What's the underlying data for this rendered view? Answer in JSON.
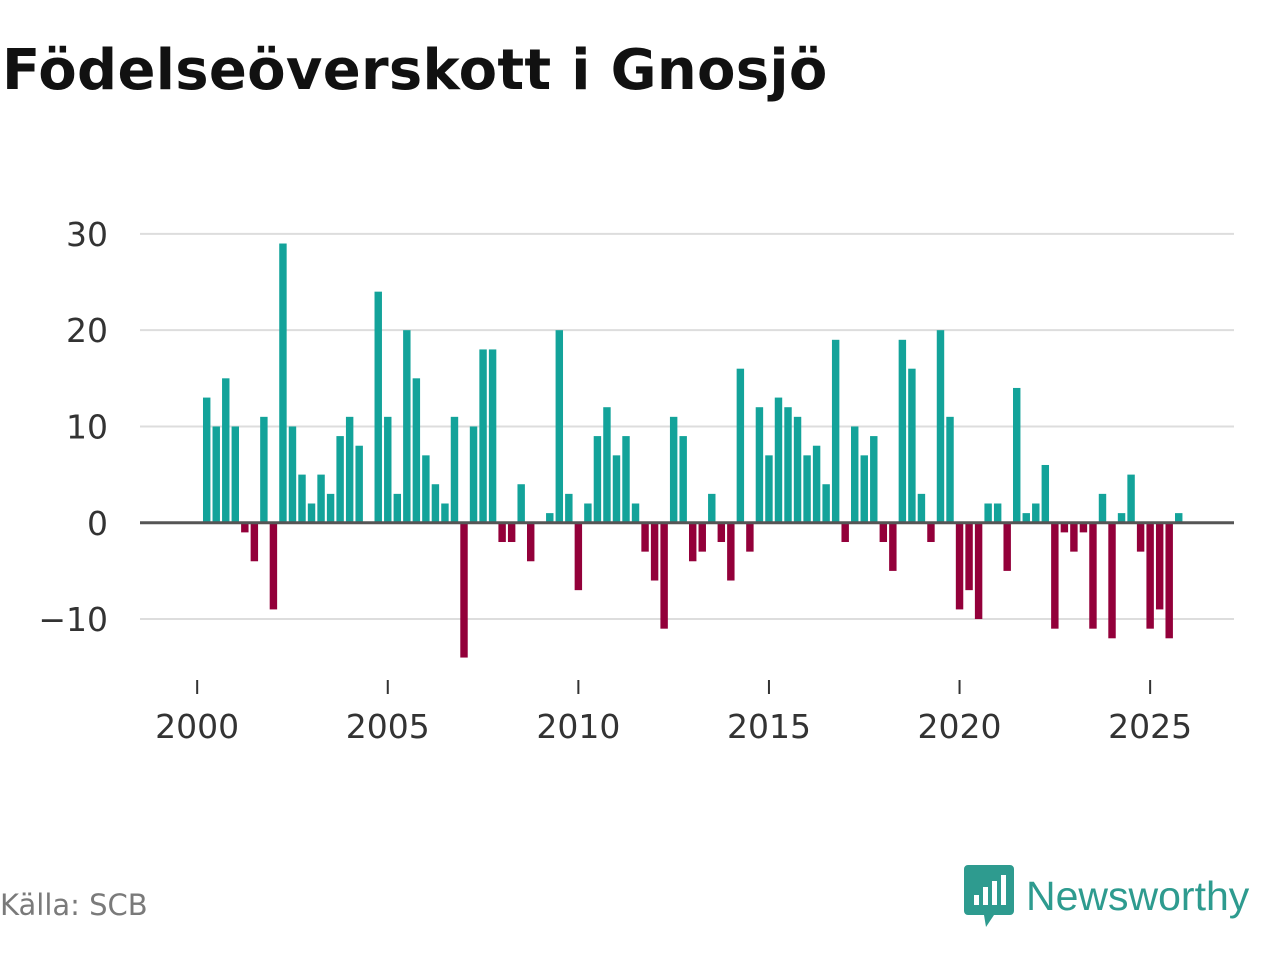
{
  "chart_data": {
    "type": "bar",
    "title": "Födelseöverskott i Gnosjö",
    "xlabel": "",
    "ylabel": "",
    "x_start": 2000.25,
    "x_step": 0.25,
    "values": [
      13,
      10,
      15,
      10,
      -1,
      -4,
      11,
      -9,
      29,
      10,
      5,
      2,
      5,
      3,
      9,
      11,
      8,
      0,
      24,
      11,
      3,
      20,
      15,
      7,
      4,
      2,
      11,
      -14,
      10,
      18,
      18,
      -2,
      -2,
      4,
      -4,
      0,
      1,
      20,
      3,
      -7,
      2,
      9,
      12,
      7,
      9,
      2,
      -3,
      -6,
      -11,
      11,
      9,
      -4,
      -3,
      3,
      -2,
      -6,
      16,
      -3,
      12,
      7,
      13,
      12,
      11,
      7,
      8,
      4,
      19,
      -2,
      10,
      7,
      9,
      -2,
      -5,
      19,
      16,
      3,
      -2,
      20,
      11,
      -9,
      -7,
      -10,
      2,
      2,
      -5,
      14,
      1,
      2,
      6,
      -11,
      -1,
      -3,
      -1,
      -11,
      3,
      -12,
      1,
      5,
      -3,
      -11,
      -9,
      -12,
      1
    ],
    "xlim": [
      1998.5,
      2027.2
    ],
    "ylim": [
      -15.5,
      33
    ],
    "xticks": [
      2000,
      2005,
      2010,
      2015,
      2020,
      2025
    ],
    "xtick_labels": [
      "2000",
      "2005",
      "2010",
      "2015",
      "2020",
      "2025"
    ],
    "yticks": [
      -10,
      0,
      10,
      20,
      30
    ],
    "ytick_labels": [
      "−10",
      "0",
      "10",
      "20",
      "30"
    ],
    "grid": true,
    "legend": "none",
    "colors": {
      "positive": "#13a39a",
      "negative": "#93003a",
      "grid": "#dddddd",
      "zero_line": "#555555",
      "tick": "#333333"
    }
  },
  "source": "Källa: SCB",
  "logo": {
    "text": "Newsworthy",
    "icon": "newsworthy-logo-icon",
    "color": "#2e9b8f"
  }
}
